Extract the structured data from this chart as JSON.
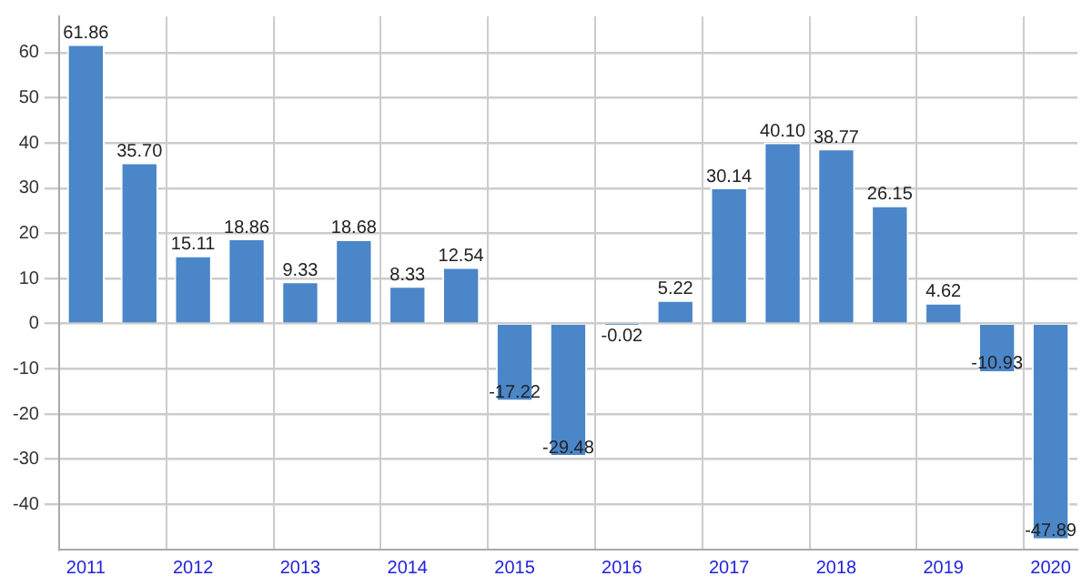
{
  "chart_data": {
    "type": "bar",
    "categories": [
      "2011",
      null,
      "2012",
      null,
      "2013",
      null,
      "2014",
      null,
      "2015",
      null,
      "2016",
      null,
      "2017",
      null,
      "2018",
      null,
      "2019",
      null,
      "2020"
    ],
    "values": [
      61.86,
      35.7,
      15.11,
      18.86,
      9.33,
      18.68,
      8.33,
      12.54,
      -17.22,
      -29.48,
      -0.02,
      5.22,
      30.14,
      40.1,
      38.77,
      26.15,
      4.62,
      -10.93,
      -47.89
    ],
    "value_labels": [
      "61.86",
      "35.70",
      "15.11",
      "18.86",
      "9.33",
      "18.68",
      "8.33",
      "12.54",
      "-17.22",
      "-29.48",
      "-0.02",
      "5.22",
      "30.14",
      "40.10",
      "38.77",
      "26.15",
      "4.62",
      "-10.93",
      "-47.89"
    ],
    "color": "#4a86c8",
    "ylim": [
      -50,
      68
    ],
    "yticks": [
      -40,
      -30,
      -20,
      -10,
      0,
      10,
      20,
      30,
      40,
      50,
      60
    ],
    "grid": true,
    "legend": false
  }
}
